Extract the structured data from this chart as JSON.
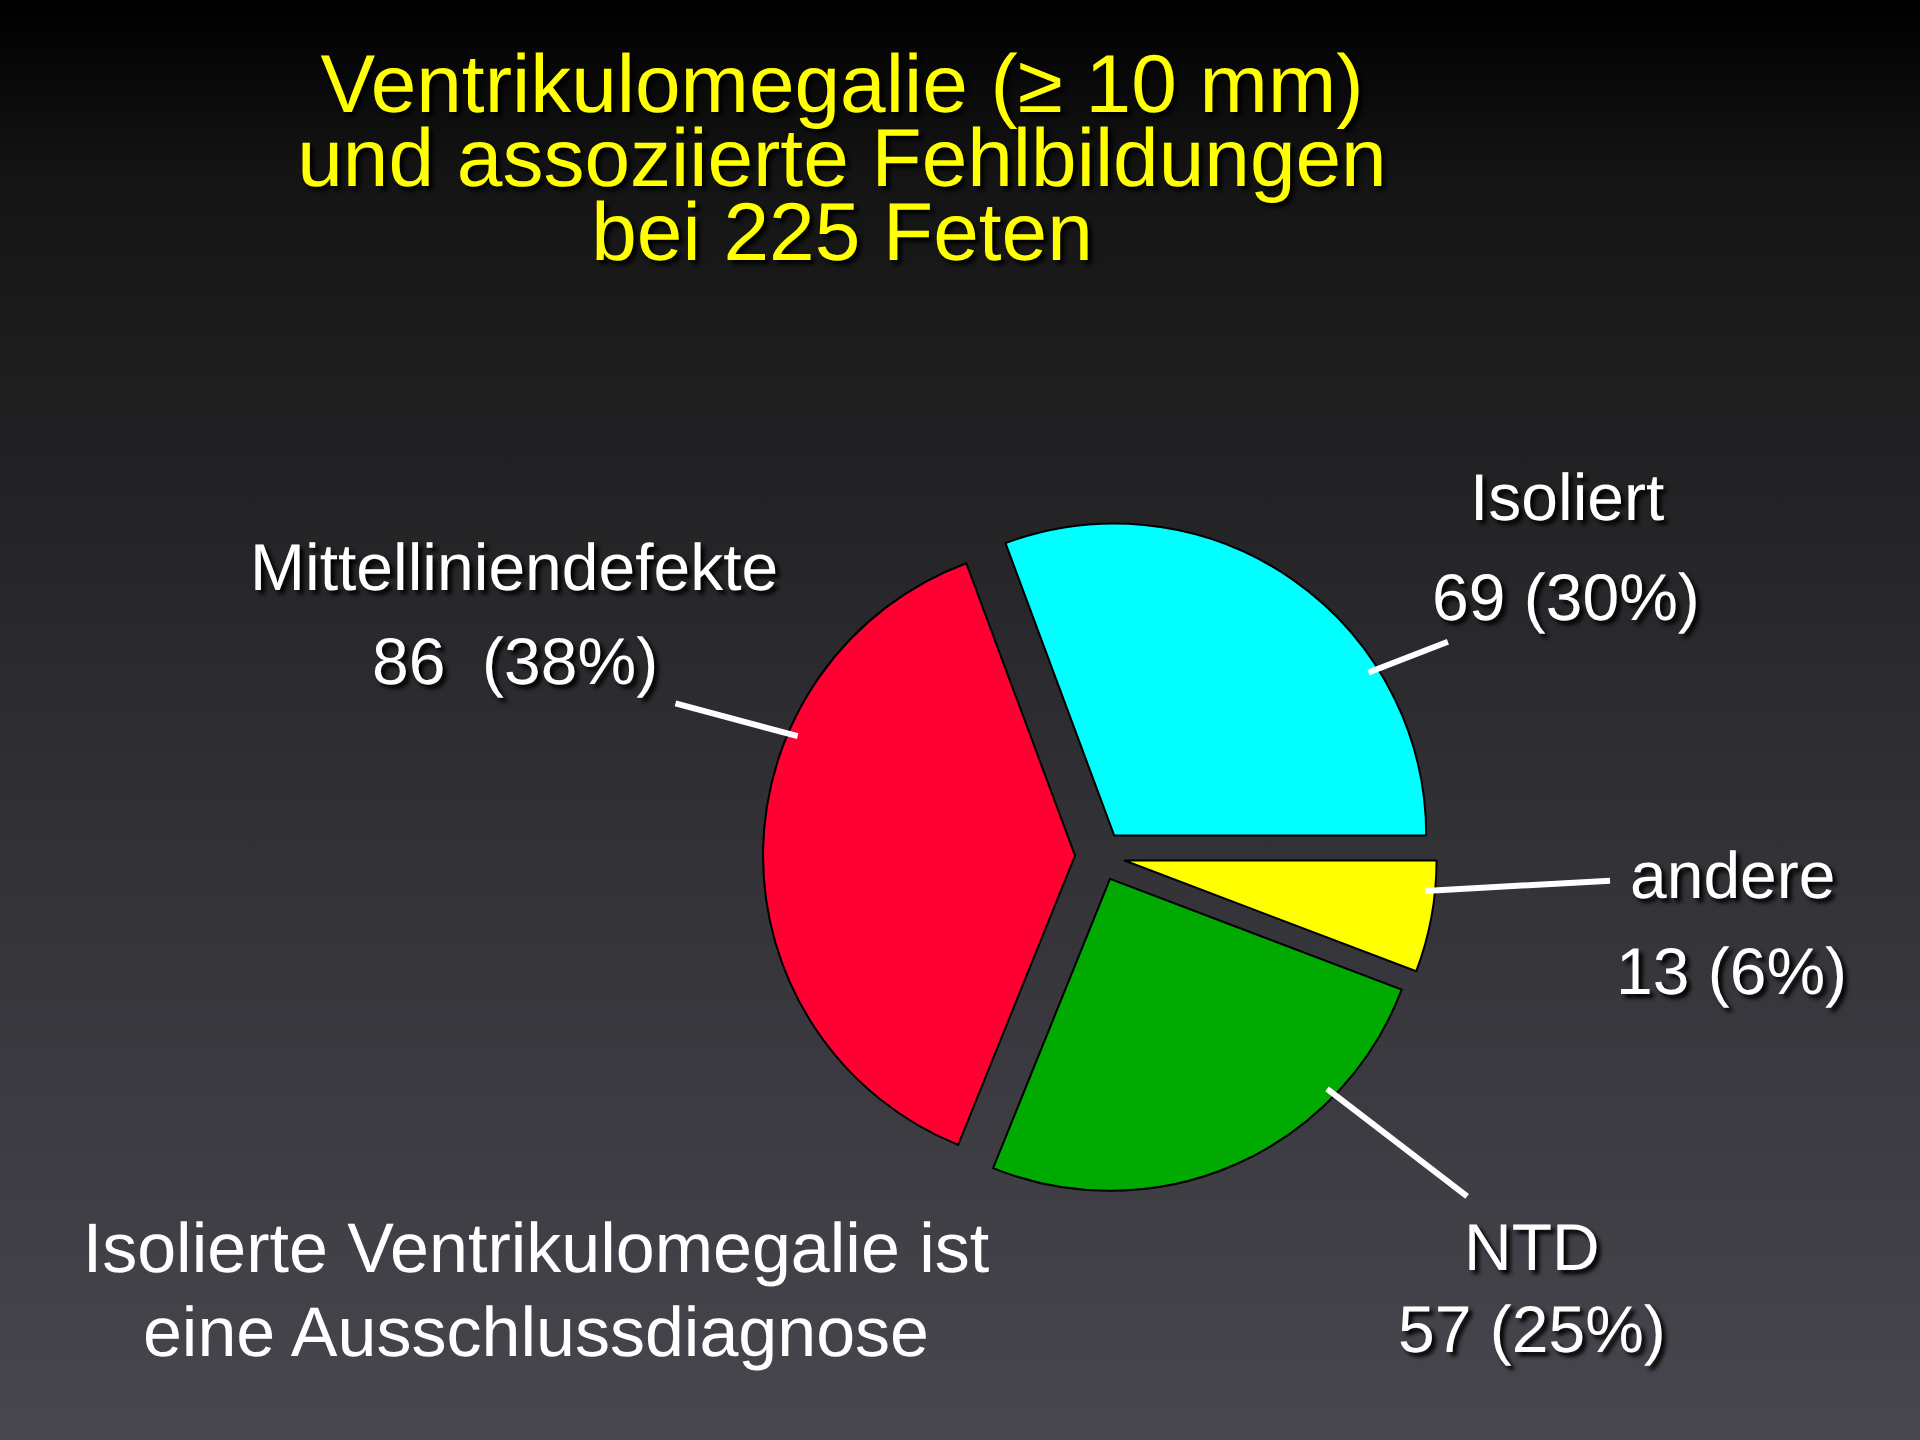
{
  "chart_data": {
    "type": "pie",
    "title": "Ventrikulomegalie (≥ 10 mm)\nund assoziierte Fehlbildungen\nbei 225 Feten",
    "categories": [
      "Isoliert",
      "andere",
      "NTD",
      "Mittelliniendefekte"
    ],
    "values": [
      69,
      13,
      57,
      86
    ],
    "value_labels": [
      "69 (30%)",
      "13 (6%)",
      "57 (25%)",
      "86  (38%)"
    ],
    "colors": [
      "#00ffff",
      "#ffff00",
      "#00aa00",
      "#ff0033"
    ],
    "annotations": [
      "Isolierte Ventrikulomegalie ist\neine Ausschlussdiagnose"
    ]
  }
}
